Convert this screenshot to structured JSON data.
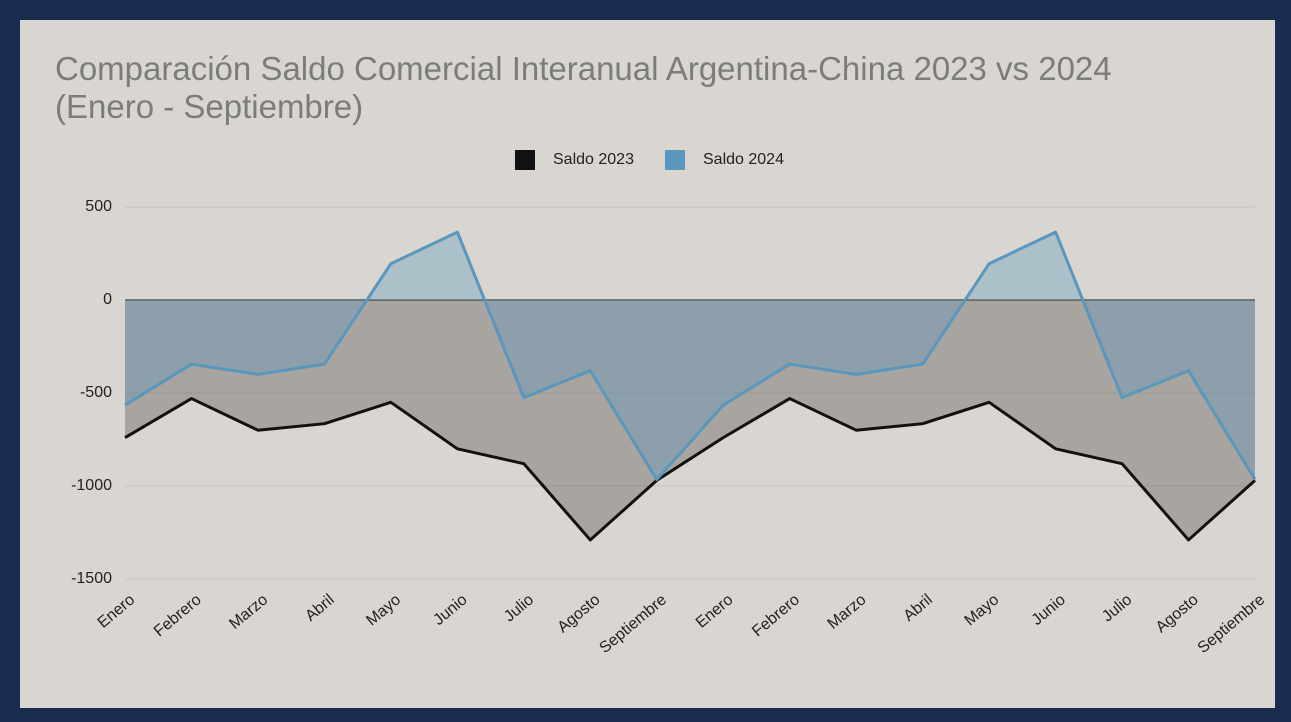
{
  "chart_data": {
    "type": "area",
    "title": "Comparación Saldo Comercial Interanual Argentina-China 2023 vs 2024 (Enero - Septiembre)",
    "categories": [
      "Enero",
      "Febrero",
      "Marzo",
      "Abril",
      "Mayo",
      "Junio",
      "Julio",
      "Agosto",
      "Septiembre",
      "Enero",
      "Febrero",
      "Marzo",
      "Abril",
      "Mayo",
      "Junio",
      "Julio",
      "Agosto",
      "Septiembre"
    ],
    "series": [
      {
        "name": "Saldo 2023",
        "color": "#111111",
        "values": [
          -740,
          -530,
          -700,
          -665,
          -550,
          -800,
          -880,
          -1290,
          -970,
          -740,
          -530,
          -700,
          -665,
          -550,
          -800,
          -880,
          -1290,
          -970
        ]
      },
      {
        "name": "Saldo 2024",
        "color": "#5a97bd",
        "values": [
          -565,
          -345,
          -400,
          -345,
          195,
          365,
          -525,
          -380,
          -965,
          -565,
          -345,
          -400,
          -345,
          195,
          365,
          -525,
          -380,
          -965
        ]
      }
    ],
    "ylim": [
      -1500,
      500
    ],
    "yticks": [
      -1500,
      -1000,
      -500,
      0,
      500
    ],
    "grid": true,
    "legend": "top"
  }
}
